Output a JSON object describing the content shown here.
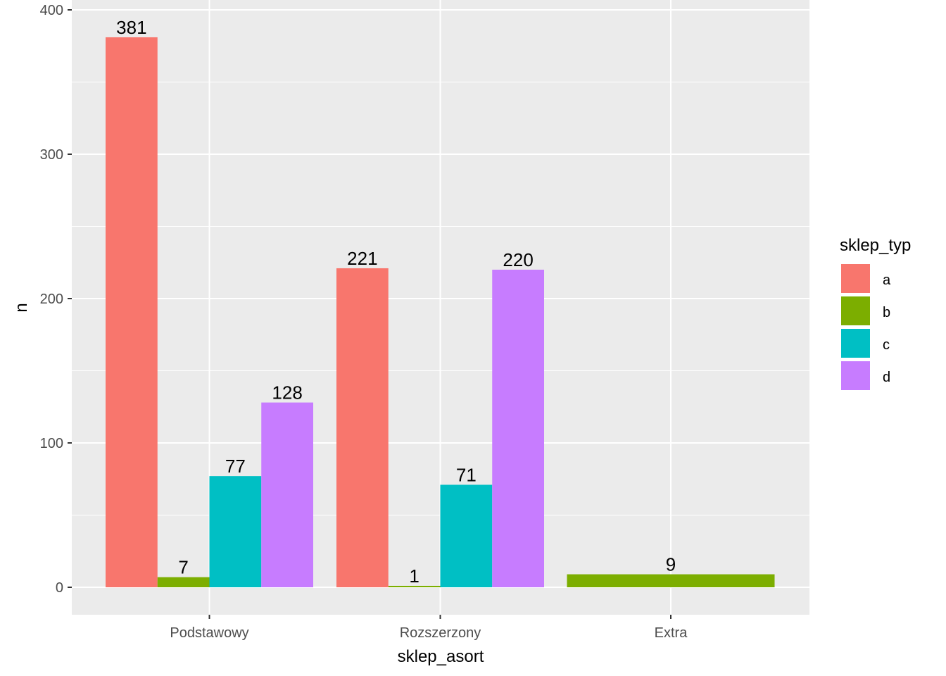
{
  "chart_data": {
    "type": "bar",
    "layout": "dodge-preserve-total",
    "categories": [
      "Podstawowy",
      "Rozszerzony",
      "Extra"
    ],
    "series": [
      {
        "name": "a",
        "color": "#F8766D",
        "values": [
          381,
          221,
          null
        ]
      },
      {
        "name": "b",
        "color": "#7CAE00",
        "values": [
          7,
          1,
          9
        ]
      },
      {
        "name": "c",
        "color": "#00BFC4",
        "values": [
          77,
          71,
          null
        ]
      },
      {
        "name": "d",
        "color": "#C77CFF",
        "values": [
          128,
          220,
          null
        ]
      }
    ],
    "xlabel": "sklep_asort",
    "ylabel": "n",
    "ylim": [
      -18,
      400
    ],
    "yticks": [
      0,
      100,
      200,
      300,
      400
    ],
    "grid": true,
    "panel_background": "#EBEBEB",
    "legend": {
      "title": "sklep_typ",
      "position": "right"
    }
  }
}
